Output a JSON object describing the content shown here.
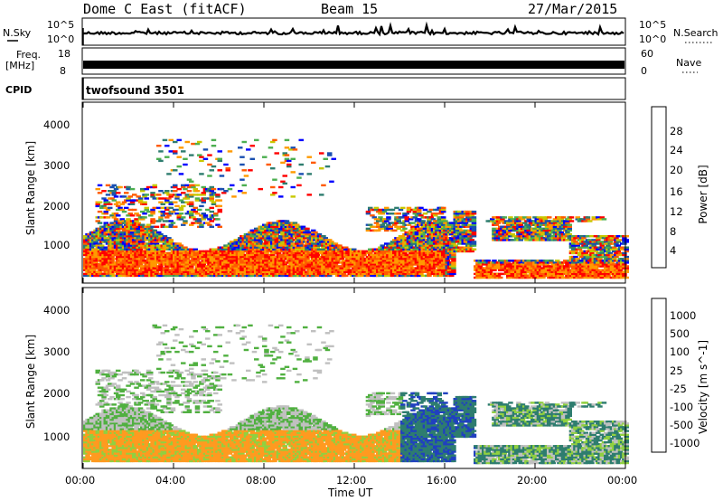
{
  "header": {
    "station": "Dome C East (fitACF)",
    "beam": "Beam 15",
    "date": "27/Mar/2015"
  },
  "top_panels": {
    "nsky_label": "N.Sky",
    "nsky_ticks": [
      "10^5",
      "10^0"
    ],
    "nsearch_label": "N.Search",
    "nsearch_ticks": [
      "10^5",
      "10^0"
    ],
    "freq_label": "Freq.",
    "freq_unit": "[MHz]",
    "freq_ticks": [
      "18",
      "8"
    ],
    "nave_label": "Nave",
    "nave_ticks": [
      "60",
      "0"
    ],
    "cpid_label": "CPID",
    "cpid_value": "twofsound 3501"
  },
  "chart_data": [
    {
      "type": "heatmap",
      "name": "power",
      "title": "",
      "xlabel": "",
      "ylabel": "Slant Range [km]",
      "x_ticks": [
        "00:00",
        "04:00",
        "08:00",
        "12:00",
        "16:00",
        "20:00",
        "00:00"
      ],
      "y_ticks": [
        "1000",
        "2000",
        "3000",
        "4000"
      ],
      "ylim": [
        180,
        4500
      ],
      "colorbar": {
        "label": "Power [dB]",
        "ticks": [
          "4",
          "8",
          "12",
          "16",
          "20",
          "24",
          "28"
        ],
        "range": [
          0,
          30
        ]
      },
      "colors": [
        "#0000ff",
        "#1a4fb0",
        "#2e7d6f",
        "#4caf50",
        "#c8c800",
        "#ff9a00",
        "#ff5a00",
        "#ff0000"
      ]
    },
    {
      "type": "heatmap",
      "name": "velocity",
      "title": "",
      "xlabel": "Time UT",
      "ylabel": "Slant Range [km]",
      "x_ticks": [
        "00:00",
        "04:00",
        "08:00",
        "12:00",
        "16:00",
        "20:00",
        "00:00"
      ],
      "y_ticks": [
        "1000",
        "2000",
        "3000",
        "4000"
      ],
      "ylim": [
        180,
        4500
      ],
      "colorbar": {
        "label": "Velocity [m s^-1]",
        "ticks": [
          "1000",
          "500",
          "100",
          "25",
          "-25",
          "-100",
          "-500",
          "-1000"
        ]
      },
      "colors": [
        "#2040c0",
        "#2e7d6f",
        "#50b040",
        "#90d040",
        "#c0c0c0",
        "#ff9a20",
        "#ff7a00",
        "#ff3000",
        "#ff0000"
      ]
    }
  ]
}
